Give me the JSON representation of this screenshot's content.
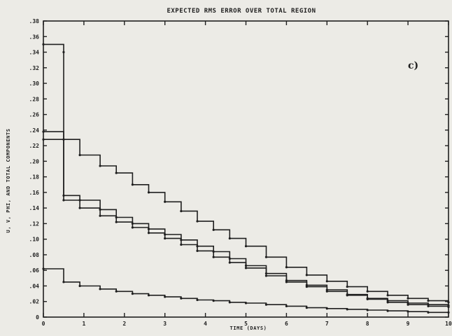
{
  "chart_data": {
    "type": "line",
    "title": "EXPECTED RMS ERROR OVER TOTAL REGION",
    "xlabel": "TIME (DAYS)",
    "ylabel": "U, V, PHI, AND TOTAL COMPONENTS",
    "panel_label": "c)",
    "xlim": [
      0,
      10
    ],
    "ylim": [
      0,
      0.38
    ],
    "x_ticks": [
      0,
      1,
      2,
      3,
      4,
      5,
      6,
      7,
      8,
      9,
      10
    ],
    "x_tick_labels": [
      "0",
      "1",
      "2",
      "3",
      "4",
      "5",
      "6",
      "7",
      "8",
      "9",
      "10"
    ],
    "y_ticks": [
      0,
      0.02,
      0.04,
      0.06,
      0.08,
      0.1,
      0.12,
      0.14,
      0.16,
      0.18,
      0.2,
      0.22,
      0.24,
      0.26,
      0.28,
      0.3,
      0.32,
      0.34,
      0.36,
      0.38
    ],
    "y_tick_labels": [
      "0",
      ".02",
      ".04",
      ".06",
      ".08",
      ".10",
      ".12",
      ".14",
      ".16",
      ".18",
      ".20",
      ".22",
      ".24",
      ".26",
      ".28",
      ".30",
      ".32",
      ".34",
      ".36",
      ".38"
    ],
    "grid": false,
    "line_color": "#1f1f1f",
    "series": [
      {
        "x": [
          0,
          0.5,
          0.5,
          0.9,
          1.4,
          1.8,
          2.2,
          2.6,
          3.0,
          3.4,
          3.8,
          4.2,
          4.6,
          5.0,
          5.5,
          6.0,
          6.5,
          7.0,
          7.5,
          8.0,
          8.5,
          9.0,
          9.5,
          10.0
        ],
        "y": [
          0.35,
          0.34,
          0.156,
          0.15,
          0.138,
          0.128,
          0.12,
          0.113,
          0.106,
          0.099,
          0.091,
          0.084,
          0.075,
          0.066,
          0.056,
          0.047,
          0.041,
          0.035,
          0.029,
          0.024,
          0.021,
          0.018,
          0.016,
          0.015
        ]
      },
      {
        "x": [
          0,
          0.5,
          0.9,
          1.4,
          1.8,
          2.2,
          2.6,
          3.0,
          3.4,
          3.8,
          4.2,
          4.6,
          5.0,
          5.5,
          6.0,
          6.5,
          7.0,
          7.5,
          8.0,
          8.5,
          9.0,
          9.5,
          10.0
        ],
        "y": [
          0.238,
          0.228,
          0.208,
          0.194,
          0.185,
          0.17,
          0.16,
          0.148,
          0.136,
          0.123,
          0.112,
          0.101,
          0.091,
          0.077,
          0.064,
          0.054,
          0.046,
          0.039,
          0.033,
          0.028,
          0.024,
          0.021,
          0.019
        ]
      },
      {
        "x": [
          0,
          0.5,
          0.9,
          1.4,
          1.8,
          2.2,
          2.6,
          3.0,
          3.4,
          3.8,
          4.2,
          4.6,
          5.0,
          5.5,
          6.0,
          6.5,
          7.0,
          7.5,
          8.0,
          8.5,
          9.0,
          9.5,
          10.0
        ],
        "y": [
          0.228,
          0.15,
          0.14,
          0.13,
          0.122,
          0.115,
          0.108,
          0.101,
          0.093,
          0.085,
          0.077,
          0.07,
          0.063,
          0.053,
          0.045,
          0.039,
          0.033,
          0.028,
          0.023,
          0.019,
          0.016,
          0.014,
          0.013
        ]
      },
      {
        "x": [
          0,
          0.5,
          0.9,
          1.4,
          1.8,
          2.2,
          2.6,
          3.0,
          3.4,
          3.8,
          4.2,
          4.6,
          5.0,
          5.5,
          6.0,
          6.5,
          7.0,
          7.5,
          8.0,
          8.5,
          9.0,
          9.5,
          10.0
        ],
        "y": [
          0.062,
          0.045,
          0.04,
          0.036,
          0.033,
          0.03,
          0.028,
          0.026,
          0.024,
          0.022,
          0.021,
          0.019,
          0.018,
          0.016,
          0.014,
          0.012,
          0.011,
          0.01,
          0.009,
          0.008,
          0.007,
          0.006,
          0.006
        ]
      }
    ]
  }
}
